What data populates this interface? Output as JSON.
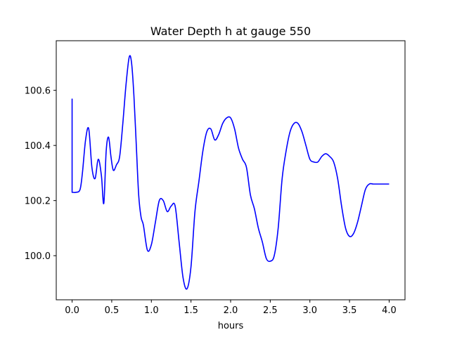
{
  "chart_data": {
    "type": "line",
    "title": "Water Depth h at gauge 550",
    "xlabel": "hours",
    "ylabel": "",
    "xlim": [
      -0.2,
      4.2
    ],
    "ylim": [
      99.84,
      100.78
    ],
    "x_ticks": [
      0.0,
      0.5,
      1.0,
      1.5,
      2.0,
      2.5,
      3.0,
      3.5,
      4.0
    ],
    "x_tick_labels": [
      "0.0",
      "0.5",
      "1.0",
      "1.5",
      "2.0",
      "2.5",
      "3.0",
      "3.5",
      "4.0"
    ],
    "y_ticks": [
      100.0,
      100.2,
      100.4,
      100.6
    ],
    "y_tick_labels": [
      "100.0",
      "100.2",
      "100.4",
      "100.6"
    ],
    "grid": false,
    "line_color": "#0000ff",
    "series": [
      {
        "x": [
          0.0,
          0.0,
          0.05,
          0.1,
          0.13,
          0.17,
          0.21,
          0.25,
          0.29,
          0.33,
          0.37,
          0.4,
          0.43,
          0.46,
          0.49,
          0.52,
          0.56,
          0.6,
          0.64,
          0.68,
          0.72,
          0.75,
          0.78,
          0.81,
          0.84,
          0.87,
          0.9,
          0.95,
          1.0,
          1.05,
          1.1,
          1.15,
          1.2,
          1.25,
          1.3,
          1.35,
          1.4,
          1.45,
          1.5,
          1.55,
          1.6,
          1.65,
          1.7,
          1.75,
          1.8,
          1.85,
          1.9,
          1.95,
          2.0,
          2.05,
          2.1,
          2.15,
          2.2,
          2.25,
          2.3,
          2.35,
          2.4,
          2.45,
          2.5,
          2.55,
          2.6,
          2.65,
          2.7,
          2.75,
          2.8,
          2.85,
          2.9,
          2.95,
          3.0,
          3.05,
          3.1,
          3.15,
          3.2,
          3.25,
          3.3,
          3.35,
          3.4,
          3.45,
          3.5,
          3.55,
          3.6,
          3.65,
          3.7,
          3.75,
          3.8,
          3.85,
          3.9,
          3.95,
          4.0
        ],
        "y": [
          100.57,
          100.23,
          100.23,
          100.24,
          100.3,
          100.42,
          100.46,
          100.32,
          100.28,
          100.35,
          100.29,
          100.19,
          100.38,
          100.43,
          100.36,
          100.31,
          100.33,
          100.36,
          100.48,
          100.62,
          100.72,
          100.7,
          100.58,
          100.4,
          100.22,
          100.14,
          100.11,
          100.02,
          100.04,
          100.12,
          100.2,
          100.2,
          100.16,
          100.18,
          100.18,
          100.05,
          99.92,
          99.88,
          99.96,
          100.16,
          100.27,
          100.38,
          100.45,
          100.46,
          100.42,
          100.44,
          100.48,
          100.5,
          100.5,
          100.46,
          100.39,
          100.35,
          100.32,
          100.22,
          100.17,
          100.1,
          100.05,
          99.99,
          99.98,
          100.0,
          100.1,
          100.28,
          100.38,
          100.45,
          100.48,
          100.48,
          100.45,
          100.4,
          100.35,
          100.34,
          100.34,
          100.36,
          100.37,
          100.36,
          100.34,
          100.28,
          100.18,
          100.1,
          100.07,
          100.08,
          100.12,
          100.18,
          100.24,
          100.26,
          100.26,
          100.26,
          100.26,
          100.26,
          100.26
        ]
      }
    ]
  }
}
